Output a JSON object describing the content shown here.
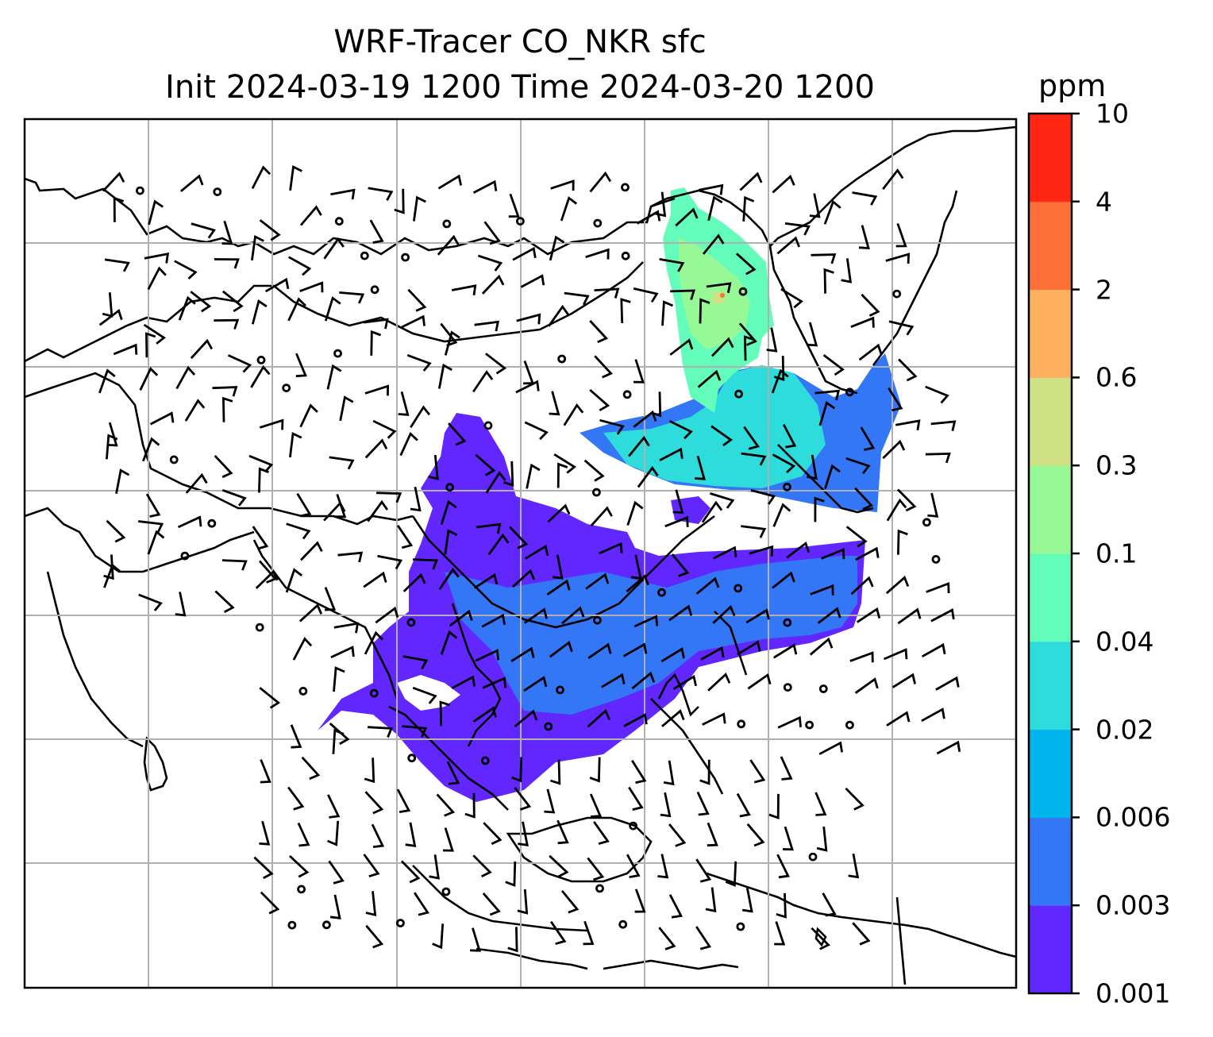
{
  "title": {
    "line1": "WRF-Tracer CO_NKR sfc",
    "line2": "Init 2024-03-19 1200 Time 2024-03-20 1200"
  },
  "colorbar": {
    "unit": "ppm",
    "levels": [
      "0.001",
      "0.003",
      "0.006",
      "0.02",
      "0.04",
      "0.1",
      "0.3",
      "0.6",
      "2",
      "4",
      "10"
    ],
    "colors": [
      "#6226ff",
      "#3377f6",
      "#02b4ec",
      "#2ddcdb",
      "#63fcba",
      "#96f996",
      "#d0e085",
      "#fdb05e",
      "#ff7039",
      "#ff2713"
    ]
  },
  "map": {
    "gridlines": true,
    "wind_barbs": true,
    "coastlines": true
  }
}
